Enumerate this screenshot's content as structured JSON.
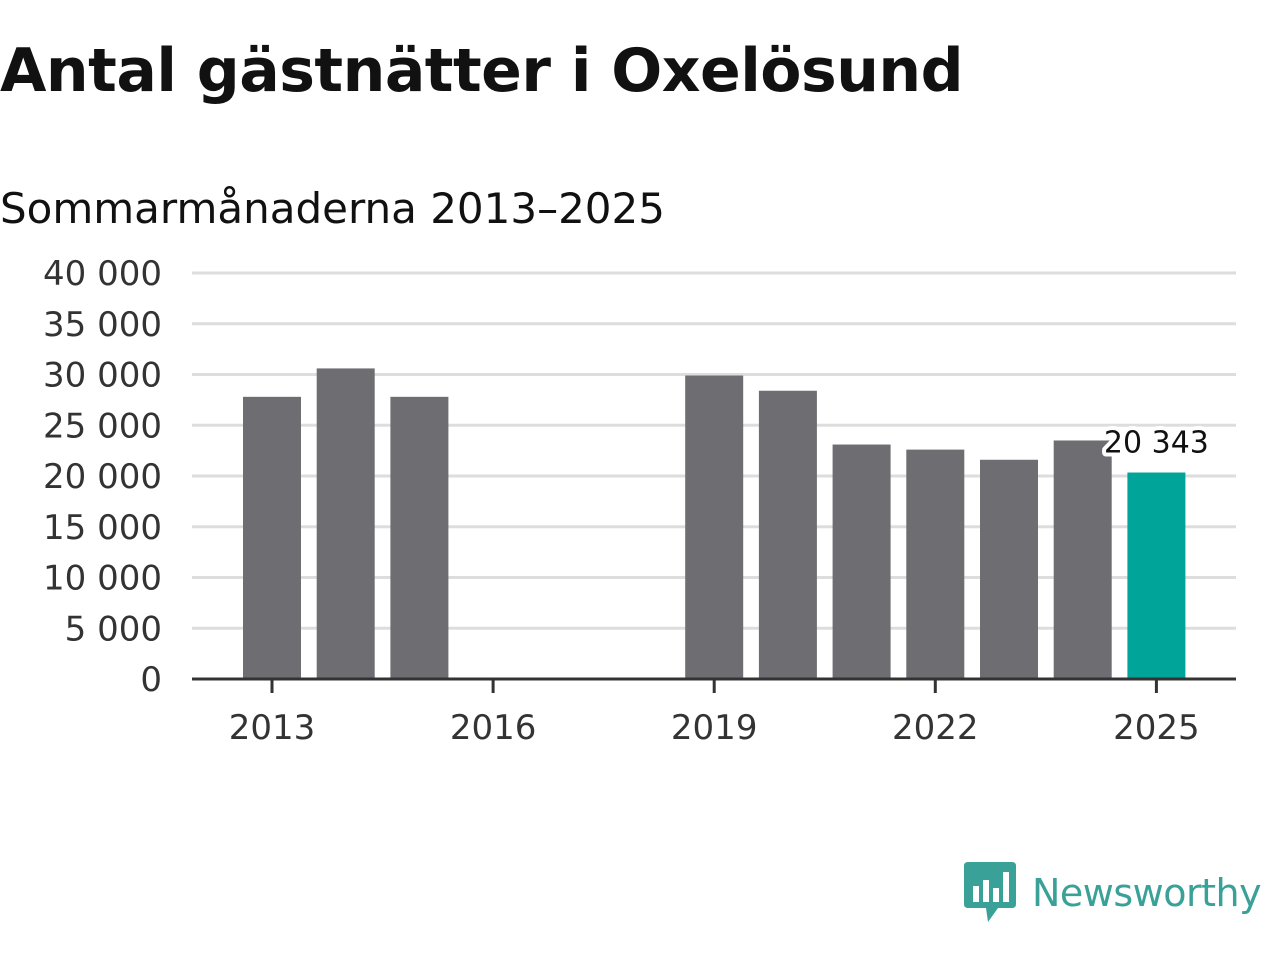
{
  "title": "Antal gästnätter i Oxelösund",
  "subtitle": "Sommarmånaderna 2013–2025",
  "brand": "Newsworthy",
  "colors": {
    "bar": "#6e6d72",
    "highlight": "#00a499",
    "grid": "#dddddd",
    "axis": "#333333",
    "brand": "#3aa198"
  },
  "chart_data": {
    "type": "bar",
    "title": "Antal gästnätter i Oxelösund",
    "subtitle": "Sommarmånaderna 2013–2025",
    "xlabel": "",
    "ylabel": "",
    "categories": [
      "2013",
      "2014",
      "2015",
      "2016",
      "2017",
      "2018",
      "2019",
      "2020",
      "2021",
      "2022",
      "2023",
      "2024",
      "2025"
    ],
    "values": [
      27800,
      30600,
      27800,
      null,
      null,
      null,
      29900,
      28400,
      23100,
      22600,
      21600,
      23500,
      20343
    ],
    "highlight_index": 12,
    "annotation": {
      "index": 12,
      "text": "20 343"
    },
    "ylim": [
      0,
      40000
    ],
    "yticks": [
      0,
      5000,
      10000,
      15000,
      20000,
      25000,
      30000,
      35000,
      40000
    ],
    "ytick_labels": [
      "0",
      "5 000",
      "10 000",
      "15 000",
      "20 000",
      "25 000",
      "30 000",
      "35 000",
      "40 000"
    ],
    "xticks": [
      "2013",
      "2016",
      "2019",
      "2022",
      "2025"
    ],
    "grid": true,
    "legend": "none"
  }
}
